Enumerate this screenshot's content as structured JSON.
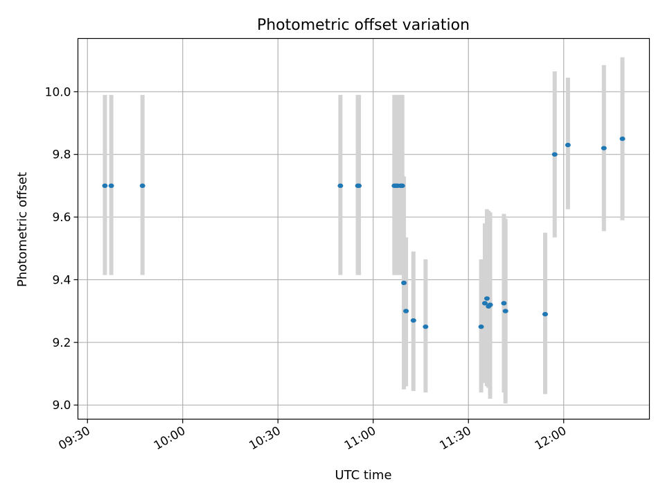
{
  "chart_data": {
    "type": "scatter",
    "title": "Photometric offset variation",
    "xlabel": "UTC time",
    "ylabel": "Photometric offset",
    "xlim": [
      "09:27",
      "12:27"
    ],
    "ylim": [
      8.955,
      10.17
    ],
    "x_ticks": [
      "09:30",
      "10:00",
      "10:30",
      "11:00",
      "11:30",
      "12:00"
    ],
    "y_ticks": [
      "9.0",
      "9.2",
      "9.4",
      "9.6",
      "9.8",
      "10.0"
    ],
    "grid": true,
    "colors": {
      "points": "#1f77b4",
      "error_bars": "#d3d3d3",
      "grid": "#b0b0b0"
    },
    "points": [
      {
        "time": "09:35:30",
        "y": 9.7,
        "err_low": 9.415,
        "err_high": 9.99
      },
      {
        "time": "09:37:30",
        "y": 9.7,
        "err_low": 9.415,
        "err_high": 9.99
      },
      {
        "time": "09:47:20",
        "y": 9.7,
        "err_low": 9.415,
        "err_high": 9.99
      },
      {
        "time": "10:49:40",
        "y": 9.7,
        "err_low": 9.415,
        "err_high": 9.99
      },
      {
        "time": "10:55:10",
        "y": 9.7,
        "err_low": 9.415,
        "err_high": 9.99
      },
      {
        "time": "10:55:30",
        "y": 9.7,
        "err_low": 9.415,
        "err_high": 9.99
      },
      {
        "time": "11:06:40",
        "y": 9.7,
        "err_low": 9.415,
        "err_high": 9.99
      },
      {
        "time": "11:07:10",
        "y": 9.7,
        "err_low": 9.415,
        "err_high": 9.99
      },
      {
        "time": "11:07:40",
        "y": 9.7,
        "err_low": 9.415,
        "err_high": 9.99
      },
      {
        "time": "11:08:40",
        "y": 9.7,
        "err_low": 9.415,
        "err_high": 9.99
      },
      {
        "time": "11:09:10",
        "y": 9.7,
        "err_low": 9.415,
        "err_high": 9.99
      },
      {
        "time": "11:09:40",
        "y": 9.39,
        "err_low": 9.05,
        "err_high": 9.73
      },
      {
        "time": "11:10:20",
        "y": 9.3,
        "err_low": 9.06,
        "err_high": 9.535
      },
      {
        "time": "11:12:40",
        "y": 9.27,
        "err_low": 9.045,
        "err_high": 9.49
      },
      {
        "time": "11:16:30",
        "y": 9.25,
        "err_low": 9.04,
        "err_high": 9.465
      },
      {
        "time": "11:34:00",
        "y": 9.25,
        "err_low": 9.04,
        "err_high": 9.465
      },
      {
        "time": "11:35:10",
        "y": 9.325,
        "err_low": 9.07,
        "err_high": 9.58
      },
      {
        "time": "11:35:50",
        "y": 9.34,
        "err_low": 9.06,
        "err_high": 9.625
      },
      {
        "time": "11:36:20",
        "y": 9.315,
        "err_low": 9.055,
        "err_high": 9.62
      },
      {
        "time": "11:36:50",
        "y": 9.32,
        "err_low": 9.02,
        "err_high": 9.615
      },
      {
        "time": "11:41:10",
        "y": 9.325,
        "err_low": 9.04,
        "err_high": 9.61
      },
      {
        "time": "11:41:40",
        "y": 9.3,
        "err_low": 9.005,
        "err_high": 9.595
      },
      {
        "time": "11:54:10",
        "y": 9.29,
        "err_low": 9.035,
        "err_high": 9.55
      },
      {
        "time": "11:57:10",
        "y": 9.8,
        "err_low": 9.535,
        "err_high": 10.065
      },
      {
        "time": "12:01:20",
        "y": 9.83,
        "err_low": 9.625,
        "err_high": 10.045
      },
      {
        "time": "12:12:40",
        "y": 9.82,
        "err_low": 9.555,
        "err_high": 10.085
      },
      {
        "time": "12:18:30",
        "y": 9.85,
        "err_low": 9.59,
        "err_high": 10.11
      }
    ]
  }
}
